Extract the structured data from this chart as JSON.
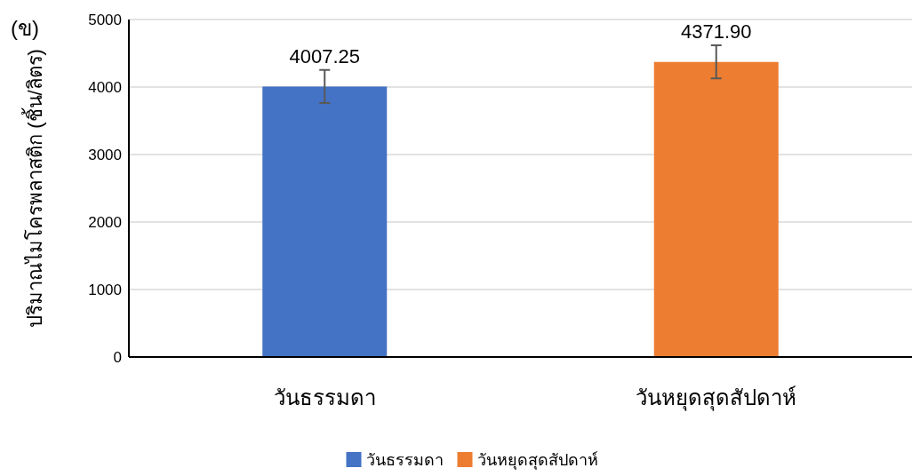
{
  "chart_data": {
    "type": "bar",
    "ylabel": "ปริมาณไมโครพลาสติก (ชิ้น/ลิตร)",
    "annotations": [
      "(ข)"
    ],
    "categories": [
      "วันธรรมดา",
      "วันหยุดสุดสัปดาห์"
    ],
    "series": [
      {
        "name": "วันธรรมดา",
        "color": "#4472c4",
        "values": [
          4007.25,
          null
        ],
        "errors": [
          245,
          null
        ],
        "value_labels": [
          "4007.25",
          null
        ]
      },
      {
        "name": "วันหยุดสุดสัปดาห์",
        "color": "#ed7d31",
        "values": [
          null,
          4371.9
        ],
        "errors": [
          null,
          245
        ],
        "value_labels": [
          null,
          "4371.90"
        ]
      }
    ],
    "ylim": [
      0,
      5000
    ],
    "yticks": [
      0,
      1000,
      2000,
      3000,
      4000,
      5000
    ],
    "grid": "y",
    "legend": "bottom"
  }
}
